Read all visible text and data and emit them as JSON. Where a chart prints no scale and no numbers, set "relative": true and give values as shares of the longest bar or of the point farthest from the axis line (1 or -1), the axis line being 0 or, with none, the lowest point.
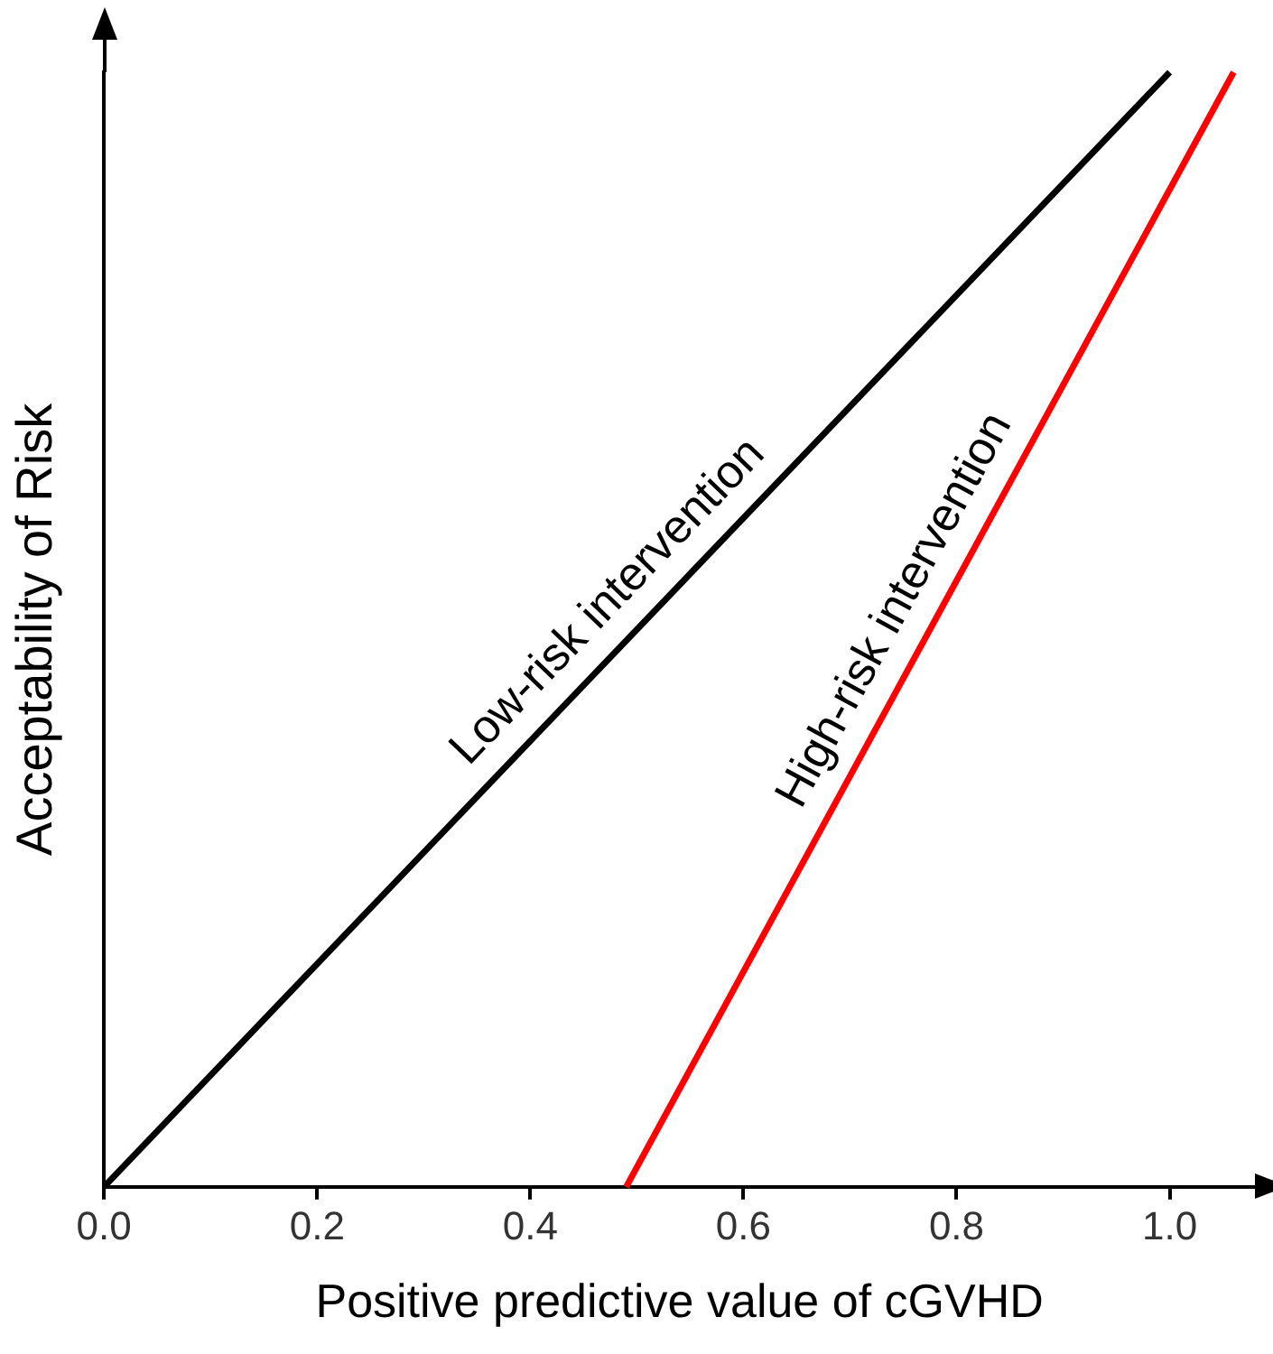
{
  "chart_data": {
    "type": "line",
    "relative": true,
    "xlabel": "Positive predictive value of cGVHD",
    "ylabel": "Acceptability of Risk",
    "xlim": [
      0,
      1.08
    ],
    "xticks": [
      {
        "value": 0,
        "label": "0.0"
      },
      {
        "value": 0.2,
        "label": "0.2"
      },
      {
        "value": 0.4,
        "label": "0.4"
      },
      {
        "value": 0.6,
        "label": "0.6"
      },
      {
        "value": 0.8,
        "label": "0.8"
      },
      {
        "value": 1,
        "label": "1.0"
      }
    ],
    "series": [
      {
        "name": "Low-risk intervention",
        "color": "#000000",
        "x": [
          0,
          1.0
        ],
        "values": [
          0,
          1
        ]
      },
      {
        "name": "High-risk intervention",
        "color": "#ff0000",
        "x": [
          0.49,
          1.06
        ],
        "values": [
          0,
          1
        ]
      }
    ],
    "grid": false,
    "legend": false,
    "marker": "none",
    "line_style": "solid"
  }
}
